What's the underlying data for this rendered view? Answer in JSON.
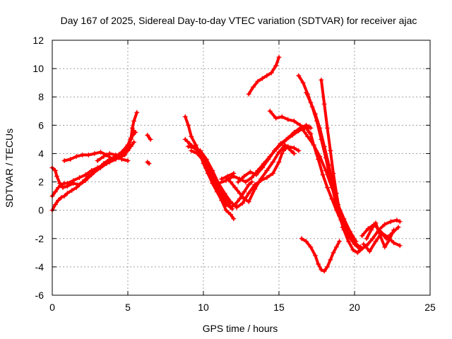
{
  "chart_data": {
    "type": "scatter",
    "title": "Day 167 of 2025, Sidereal Day-to-day VTEC variation (SDTVAR) for receiver ajac",
    "xlabel": "GPS time / hours",
    "ylabel": "SDTVAR / TECUs",
    "xlim": [
      0,
      25
    ],
    "ylim": [
      -6,
      12
    ],
    "xticks": [
      "0",
      "5",
      "10",
      "15",
      "20",
      "25"
    ],
    "yticks": [
      "-6",
      "-4",
      "-2",
      "0",
      "2",
      "4",
      "6",
      "8",
      "10",
      "12"
    ],
    "grid": true,
    "marker": "plus",
    "color": "#ff0000",
    "series": [
      {
        "x": [
          0.0,
          0.2,
          0.4,
          0.6,
          0.8,
          1.0,
          1.3,
          1.6,
          2.0,
          2.4,
          2.8,
          3.2,
          3.6,
          4.0,
          4.4,
          4.8,
          5.0,
          5.2,
          5.4
        ],
        "y": [
          0.0,
          0.4,
          0.7,
          0.9,
          1.0,
          1.2,
          1.4,
          1.6,
          2.0,
          2.4,
          2.7,
          3.0,
          3.3,
          3.6,
          3.9,
          4.3,
          4.6,
          5.0,
          5.6
        ]
      },
      {
        "x": [
          0.0,
          0.2,
          0.4,
          0.6,
          0.8,
          1.0,
          1.4,
          1.8,
          2.2,
          2.6,
          3.0,
          3.4,
          3.8,
          4.2,
          4.6,
          5.0,
          5.2,
          5.4
        ],
        "y": [
          1.0,
          1.3,
          1.6,
          1.8,
          1.9,
          1.9,
          2.1,
          2.3,
          2.5,
          2.8,
          3.0,
          3.2,
          3.4,
          3.6,
          3.9,
          4.2,
          4.5,
          4.8
        ]
      },
      {
        "x": [
          0.0,
          0.2,
          0.3,
          0.5,
          0.7,
          1.0,
          1.4,
          1.8,
          2.2,
          2.6,
          3.0,
          3.4,
          3.8,
          4.2,
          4.6,
          5.0,
          5.2,
          5.5
        ],
        "y": [
          3.0,
          2.8,
          2.4,
          1.9,
          1.6,
          1.7,
          1.9,
          1.8,
          2.1,
          2.5,
          2.9,
          3.3,
          3.6,
          3.8,
          4.1,
          4.6,
          5.1,
          5.5
        ]
      },
      {
        "x": [
          0.8,
          1.2,
          1.6,
          2.0,
          2.4,
          2.8,
          3.2,
          3.6,
          4.0,
          4.4,
          4.8,
          5.0,
          5.2,
          5.3,
          5.4,
          5.6
        ],
        "y": [
          3.5,
          3.6,
          3.8,
          3.9,
          3.9,
          4.0,
          4.1,
          3.9,
          3.6,
          3.7,
          3.9,
          4.4,
          5.0,
          5.8,
          6.3,
          6.9
        ]
      },
      {
        "x": [
          3.0,
          3.4,
          3.8,
          4.2,
          4.6,
          5.0
        ],
        "y": [
          3.5,
          3.8,
          4.0,
          3.9,
          3.6,
          3.5
        ]
      },
      {
        "x": [
          6.3,
          6.5
        ],
        "y": [
          5.3,
          5.0
        ]
      },
      {
        "x": [
          6.3,
          6.4
        ],
        "y": [
          3.4,
          3.3
        ]
      },
      {
        "x": [
          8.8,
          9.0,
          9.2,
          9.5,
          9.8,
          10.0,
          10.3,
          10.6,
          10.9,
          11.2,
          11.5,
          11.8,
          12.0
        ],
        "y": [
          6.6,
          6.0,
          5.2,
          4.6,
          3.9,
          3.3,
          2.6,
          1.9,
          1.3,
          0.7,
          0.0,
          -0.3,
          -0.6
        ]
      },
      {
        "x": [
          8.8,
          9.1,
          9.4,
          9.7,
          10.0,
          10.3,
          10.6,
          10.9,
          11.2,
          11.5,
          11.8,
          12.1,
          12.4,
          12.7,
          13.0,
          13.2
        ],
        "y": [
          5.0,
          4.7,
          4.4,
          4.1,
          3.6,
          3.1,
          2.5,
          1.8,
          1.0,
          0.4,
          0.2,
          0.4,
          0.8,
          1.3,
          1.8,
          2.0
        ]
      },
      {
        "x": [
          9.0,
          9.4,
          9.8,
          10.2,
          10.6,
          11.0,
          11.4,
          11.8,
          12.2,
          12.6,
          13.0,
          13.4,
          13.8,
          14.2,
          14.6,
          15.0,
          15.2
        ],
        "y": [
          4.5,
          4.4,
          4.2,
          3.6,
          2.8,
          1.9,
          1.2,
          0.6,
          0.2,
          0.5,
          1.2,
          1.8,
          2.1,
          2.3,
          2.6,
          3.4,
          4.0
        ]
      },
      {
        "x": [
          9.2,
          9.6,
          10.0,
          10.4,
          10.8,
          11.2,
          11.6,
          11.9
        ],
        "y": [
          4.2,
          4.0,
          3.5,
          2.6,
          1.8,
          1.2,
          0.6,
          0.1
        ]
      },
      {
        "x": [
          11.0,
          11.5,
          12.0,
          12.4,
          12.8,
          13.2,
          13.6,
          14.0,
          14.4,
          14.8,
          15.2,
          15.6,
          16.0,
          16.4,
          16.8,
          17.0
        ],
        "y": [
          1.9,
          2.1,
          2.4,
          2.2,
          2.0,
          2.3,
          2.8,
          3.3,
          3.8,
          4.3,
          4.7,
          5.1,
          5.5,
          5.8,
          6.0,
          5.9
        ]
      },
      {
        "x": [
          12.3,
          12.7,
          13.1,
          13.5,
          13.9,
          14.3,
          14.7,
          15.1,
          15.5,
          15.9,
          16.3,
          16.7,
          17.1
        ],
        "y": [
          2.0,
          2.4,
          2.7,
          2.5,
          3.0,
          3.6,
          4.2,
          4.7,
          5.0,
          5.3,
          5.6,
          5.8,
          5.8
        ]
      },
      {
        "x": [
          11.5,
          11.8,
          12.1,
          12.4,
          12.7,
          13.0,
          13.4,
          13.8,
          14.2,
          14.6,
          15.0,
          15.4,
          15.8,
          16.0
        ],
        "y": [
          2.3,
          2.0,
          1.6,
          1.2,
          0.8,
          0.6,
          1.5,
          2.2,
          2.8,
          3.4,
          4.1,
          4.6,
          4.2,
          4.0
        ]
      },
      {
        "x": [
          11.2,
          11.6,
          12.0
        ],
        "y": [
          2.2,
          2.4,
          2.6
        ]
      },
      {
        "x": [
          13.0,
          13.3,
          13.6,
          13.9,
          14.2,
          14.5,
          14.8,
          15.0
        ],
        "y": [
          8.2,
          8.7,
          9.1,
          9.3,
          9.5,
          9.7,
          10.2,
          10.8
        ]
      },
      {
        "x": [
          14.4,
          14.8,
          15.2,
          15.6,
          16.0,
          16.4,
          16.8,
          17.0
        ],
        "y": [
          7.0,
          6.5,
          6.6,
          6.4,
          6.3,
          6.0,
          5.8,
          5.5
        ]
      },
      {
        "x": [
          15.3,
          15.6,
          16.0,
          16.3
        ],
        "y": [
          4.2,
          4.5,
          4.4,
          4.2
        ]
      },
      {
        "x": [
          16.3,
          16.6,
          16.9,
          17.2,
          17.5,
          17.8,
          18.1,
          18.4,
          18.7,
          19.0,
          19.3,
          19.6,
          19.9,
          20.2,
          20.5
        ],
        "y": [
          9.5,
          9.0,
          8.2,
          7.3,
          6.3,
          5.0,
          3.7,
          2.2,
          0.8,
          -0.4,
          -1.4,
          -2.2,
          -2.8,
          -3.0,
          -2.7
        ]
      },
      {
        "x": [
          16.8,
          17.1,
          17.4,
          17.7,
          18.0,
          18.3,
          18.6,
          18.9,
          19.2,
          19.5,
          19.8,
          20.1,
          20.4
        ],
        "y": [
          8.3,
          7.6,
          6.8,
          5.8,
          4.5,
          3.2,
          1.6,
          0.4,
          -0.6,
          -1.4,
          -2.0,
          -2.4,
          -2.6
        ]
      },
      {
        "x": [
          16.5,
          16.9,
          17.3,
          17.7,
          18.1,
          18.5,
          18.9,
          19.3,
          19.7,
          20.1
        ],
        "y": [
          5.8,
          5.2,
          4.6,
          3.8,
          2.8,
          1.6,
          0.4,
          -0.6,
          -1.5,
          -2.2
        ]
      },
      {
        "x": [
          17.1,
          17.3,
          17.6,
          17.9,
          18.2,
          18.5,
          18.8,
          19.1,
          19.4,
          19.8,
          20.2
        ],
        "y": [
          5.4,
          4.6,
          3.6,
          2.5,
          1.6,
          0.8,
          0.0,
          -0.7,
          -1.4,
          -2.0,
          -2.5
        ]
      },
      {
        "x": [
          17.8,
          18.0,
          18.2,
          18.4,
          18.6,
          18.8,
          19.0,
          19.3,
          19.6
        ],
        "y": [
          9.2,
          7.5,
          5.8,
          4.2,
          2.6,
          1.2,
          0.0,
          -1.0,
          -1.8
        ]
      },
      {
        "x": [
          16.5,
          16.8,
          17.1,
          17.4,
          17.6,
          17.8,
          18.0,
          18.2,
          18.4,
          18.6,
          18.8,
          19.0
        ],
        "y": [
          -2.0,
          -2.2,
          -2.6,
          -3.2,
          -3.8,
          -4.2,
          -4.3,
          -4.0,
          -3.5,
          -3.0,
          -2.6,
          -2.2
        ]
      },
      {
        "x": [
          19.2,
          19.6,
          20.0,
          20.4,
          20.8,
          21.2,
          21.6,
          22.0,
          22.4,
          22.8,
          23.0
        ],
        "y": [
          -1.2,
          -1.8,
          -2.4,
          -2.8,
          -2.5,
          -2.0,
          -1.4,
          -1.0,
          -0.8,
          -0.7,
          -0.8
        ]
      },
      {
        "x": [
          20.5,
          20.9,
          21.3,
          21.7,
          22.1,
          22.5,
          22.9
        ],
        "y": [
          -1.8,
          -1.3,
          -1.0,
          -1.5,
          -2.0,
          -1.6,
          -1.2
        ]
      },
      {
        "x": [
          20.6,
          21.0,
          21.4,
          21.8,
          22.2,
          22.6,
          23.0
        ],
        "y": [
          -2.4,
          -2.9,
          -2.2,
          -1.6,
          -1.9,
          -2.3,
          -2.5
        ]
      },
      {
        "x": [
          20.8,
          21.1,
          21.4,
          21.7,
          22.0,
          22.3,
          22.6
        ],
        "y": [
          -2.0,
          -1.4,
          -0.9,
          -1.8,
          -2.6,
          -2.1,
          -1.4
        ]
      }
    ]
  }
}
